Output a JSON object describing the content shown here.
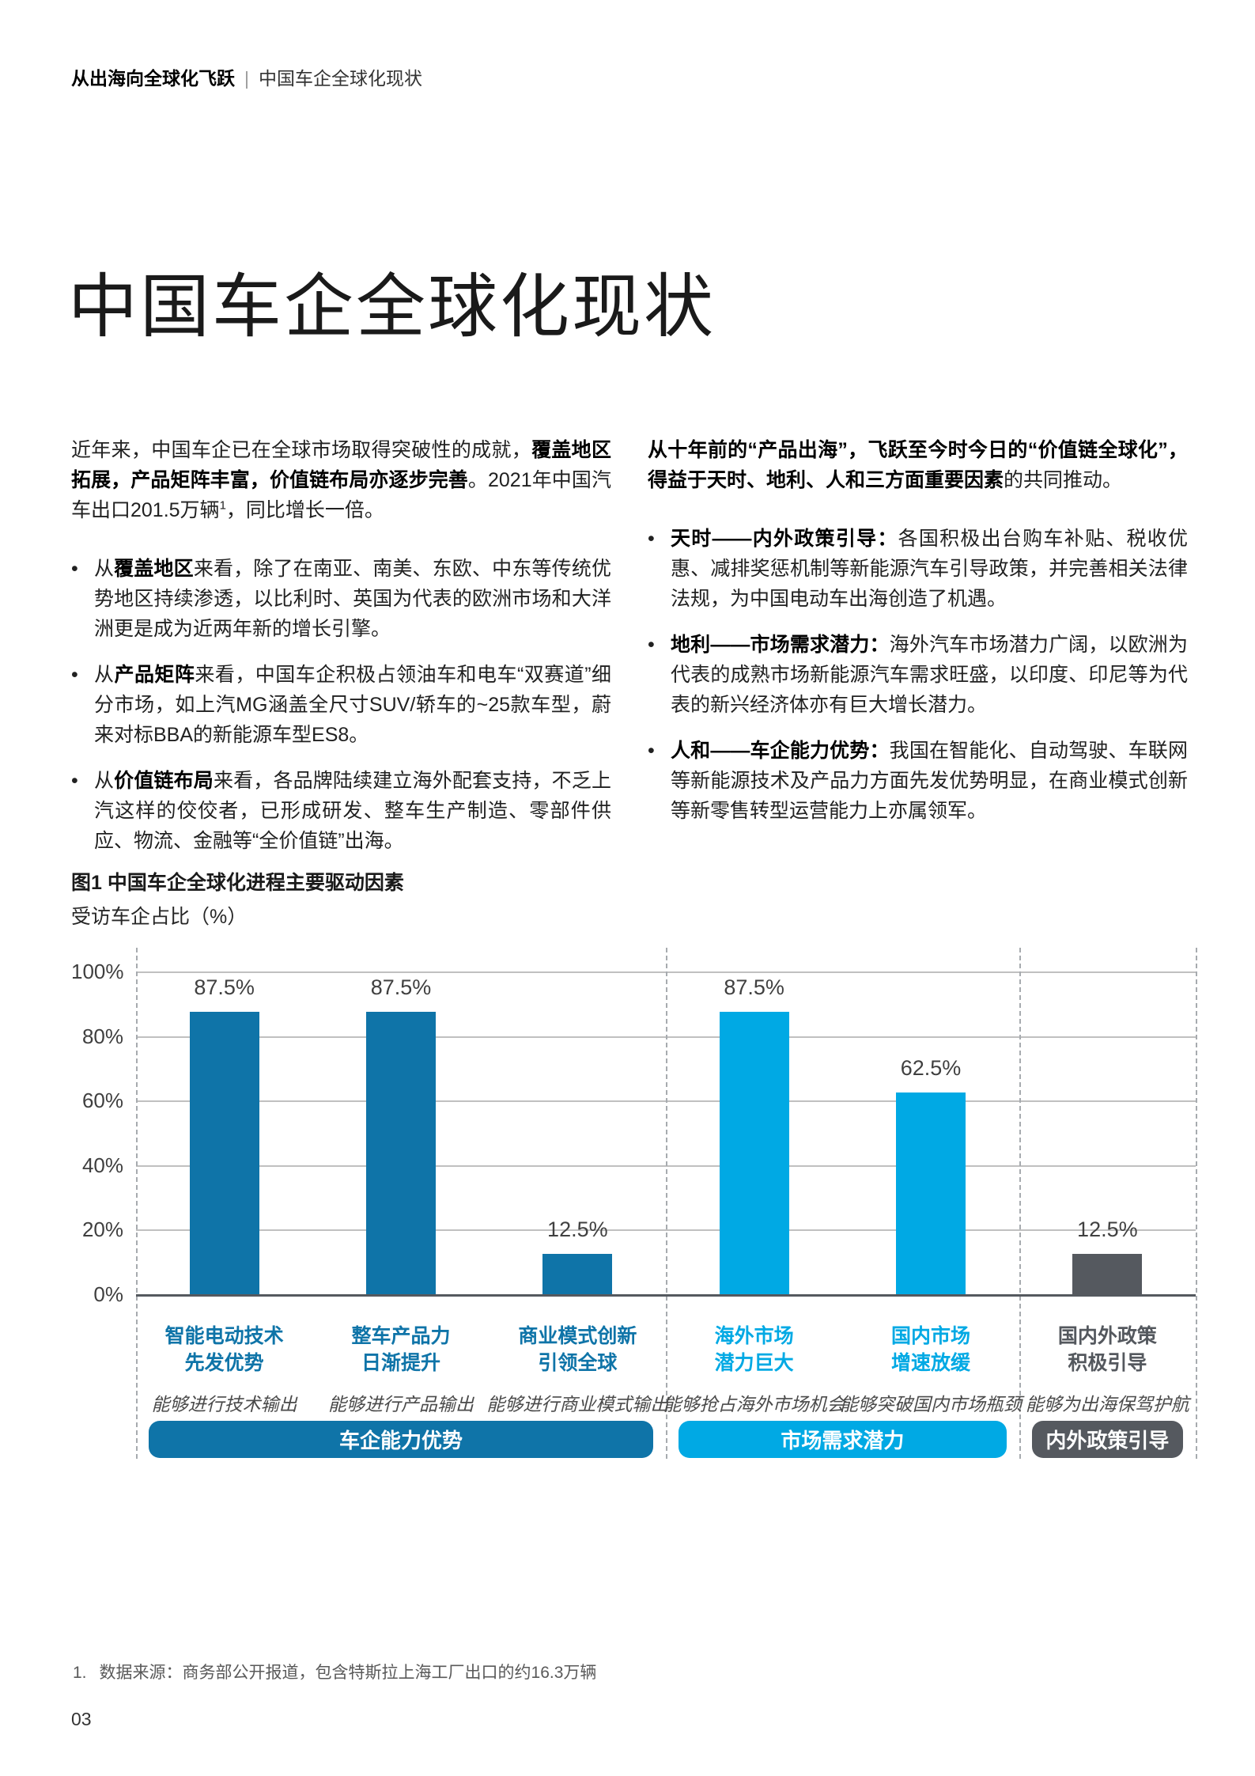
{
  "header": {
    "breadcrumb_bold": "从出海向全球化飞跃",
    "divider": "|",
    "breadcrumb_rest": "中国车企全球化现状"
  },
  "title": "中国车企全球化现状",
  "intro_left": [
    {
      "text": "近年来，中国车企已在全球市场取得突破性的成就，"
    },
    {
      "text": "覆盖地区拓展，产品矩阵丰富，价值链布局亦逐步完善",
      "bold": true
    },
    {
      "text": "。2021年中国汽车出口201.5万辆"
    },
    {
      "text": "1",
      "sup": true
    },
    {
      "text": "，同比增长一倍。"
    }
  ],
  "bullets_left": [
    [
      {
        "text": "从"
      },
      {
        "text": "覆盖地区",
        "bold": true
      },
      {
        "text": "来看，除了在南亚、南美、东欧、中东等传统优势地区持续渗透，以比利时、英国为代表的欧洲市场和大洋洲更是成为近两年新的增长引擎。"
      }
    ],
    [
      {
        "text": "从"
      },
      {
        "text": "产品矩阵",
        "bold": true
      },
      {
        "text": "来看，中国车企积极占领油车和电车“双赛道”细分市场，如上汽MG涵盖全尺寸SUV/轿车的~25款车型，蔚来对标BBA的新能源车型ES8。"
      }
    ],
    [
      {
        "text": "从"
      },
      {
        "text": "价值链布局",
        "bold": true
      },
      {
        "text": "来看，各品牌陆续建立海外配套支持，不乏上汽这样的佼佼者，已形成研发、整车生产制造、零部件供应、物流、金融等“全价值链”出海。"
      }
    ]
  ],
  "intro_right": [
    {
      "text": "从十年前的“产品出海”，飞跃至今时今日的“价值链全球化”，得益于天时、地利、人和三方面重要因素",
      "bold": true
    },
    {
      "text": "的共同推动。"
    }
  ],
  "bullets_right": [
    [
      {
        "text": "天时——内外政策引导：",
        "bold": true
      },
      {
        "text": "各国积极出台购车补贴、税收优惠、减排奖惩机制等新能源汽车引导政策，并完善相关法律法规，为中国电动车出海创造了机遇。"
      }
    ],
    [
      {
        "text": "地利——市场需求潜力：",
        "bold": true
      },
      {
        "text": "海外汽车市场潜力广阔，以欧洲为代表的成熟市场新能源汽车需求旺盛，以印度、印尼等为代表的新兴经济体亦有巨大增长潜力。"
      }
    ],
    [
      {
        "text": "人和——车企能力优势：",
        "bold": true
      },
      {
        "text": "我国在智能化、自动驾驶、车联网等新能源技术及产品力方面先发优势明显，在商业模式创新等新零售转型运营能力上亦属领军。"
      }
    ]
  ],
  "figure": {
    "title": "图1 中国车企全球化进程主要驱动因素",
    "subtitle": "受访车企占比（%）"
  },
  "chart_data": {
    "type": "bar",
    "title": "图1 中国车企全球化进程主要驱动因素",
    "ylabel": "受访车企占比（%）",
    "ylim": [
      0,
      100
    ],
    "ytick_step": 20,
    "ytick_suffix": "%",
    "grid": true,
    "categories": [
      "智能电动技术先发优势",
      "整车产品力日渐提升",
      "商业模式创新引领全球",
      "海外市场潜力巨大",
      "国内市场增速放缓",
      "国内外政策积极引导"
    ],
    "values": [
      87.5,
      87.5,
      12.5,
      87.5,
      62.5,
      12.5
    ],
    "value_labels": [
      "87.5%",
      "87.5%",
      "12.5%",
      "87.5%",
      "62.5%",
      "12.5%"
    ],
    "bar_label_lines": [
      [
        "智能电动技术",
        "先发优势"
      ],
      [
        "整车产品力",
        "日渐提升"
      ],
      [
        "商业模式创新",
        "引领全球"
      ],
      [
        "海外市场",
        "潜力巨大"
      ],
      [
        "国内市场",
        "增速放缓"
      ],
      [
        "国内外政策",
        "积极引导"
      ]
    ],
    "sublabels": [
      "能够进行技术输出",
      "能够进行产品输出",
      "能够进行商业模式输出",
      "能够抢占海外市场机会",
      "能够突破国内市场瓶颈",
      "能够为出海保驾护航"
    ],
    "groups": [
      {
        "label": "车企能力优势",
        "bars": 3,
        "color": "#0F74A8",
        "label_color": "#0F74A8"
      },
      {
        "label": "市场需求潜力",
        "bars": 2,
        "color": "#00A9E4",
        "label_color": "#00A9E4"
      },
      {
        "label": "内外政策引导",
        "bars": 1,
        "color": "#55595F",
        "label_color": "#54585E"
      }
    ],
    "colors": {
      "dark_blue": "#0F74A8",
      "light_blue": "#00A9E4",
      "gray": "#55595F",
      "value_label": "#404040",
      "grid": "#C0C0C0",
      "baseline": "#55595F"
    }
  },
  "footnote": {
    "marker": "1.",
    "text": "数据来源：商务部公开报道，包含特斯拉上海工厂出口的约16.3万辆"
  },
  "page_number": "03"
}
